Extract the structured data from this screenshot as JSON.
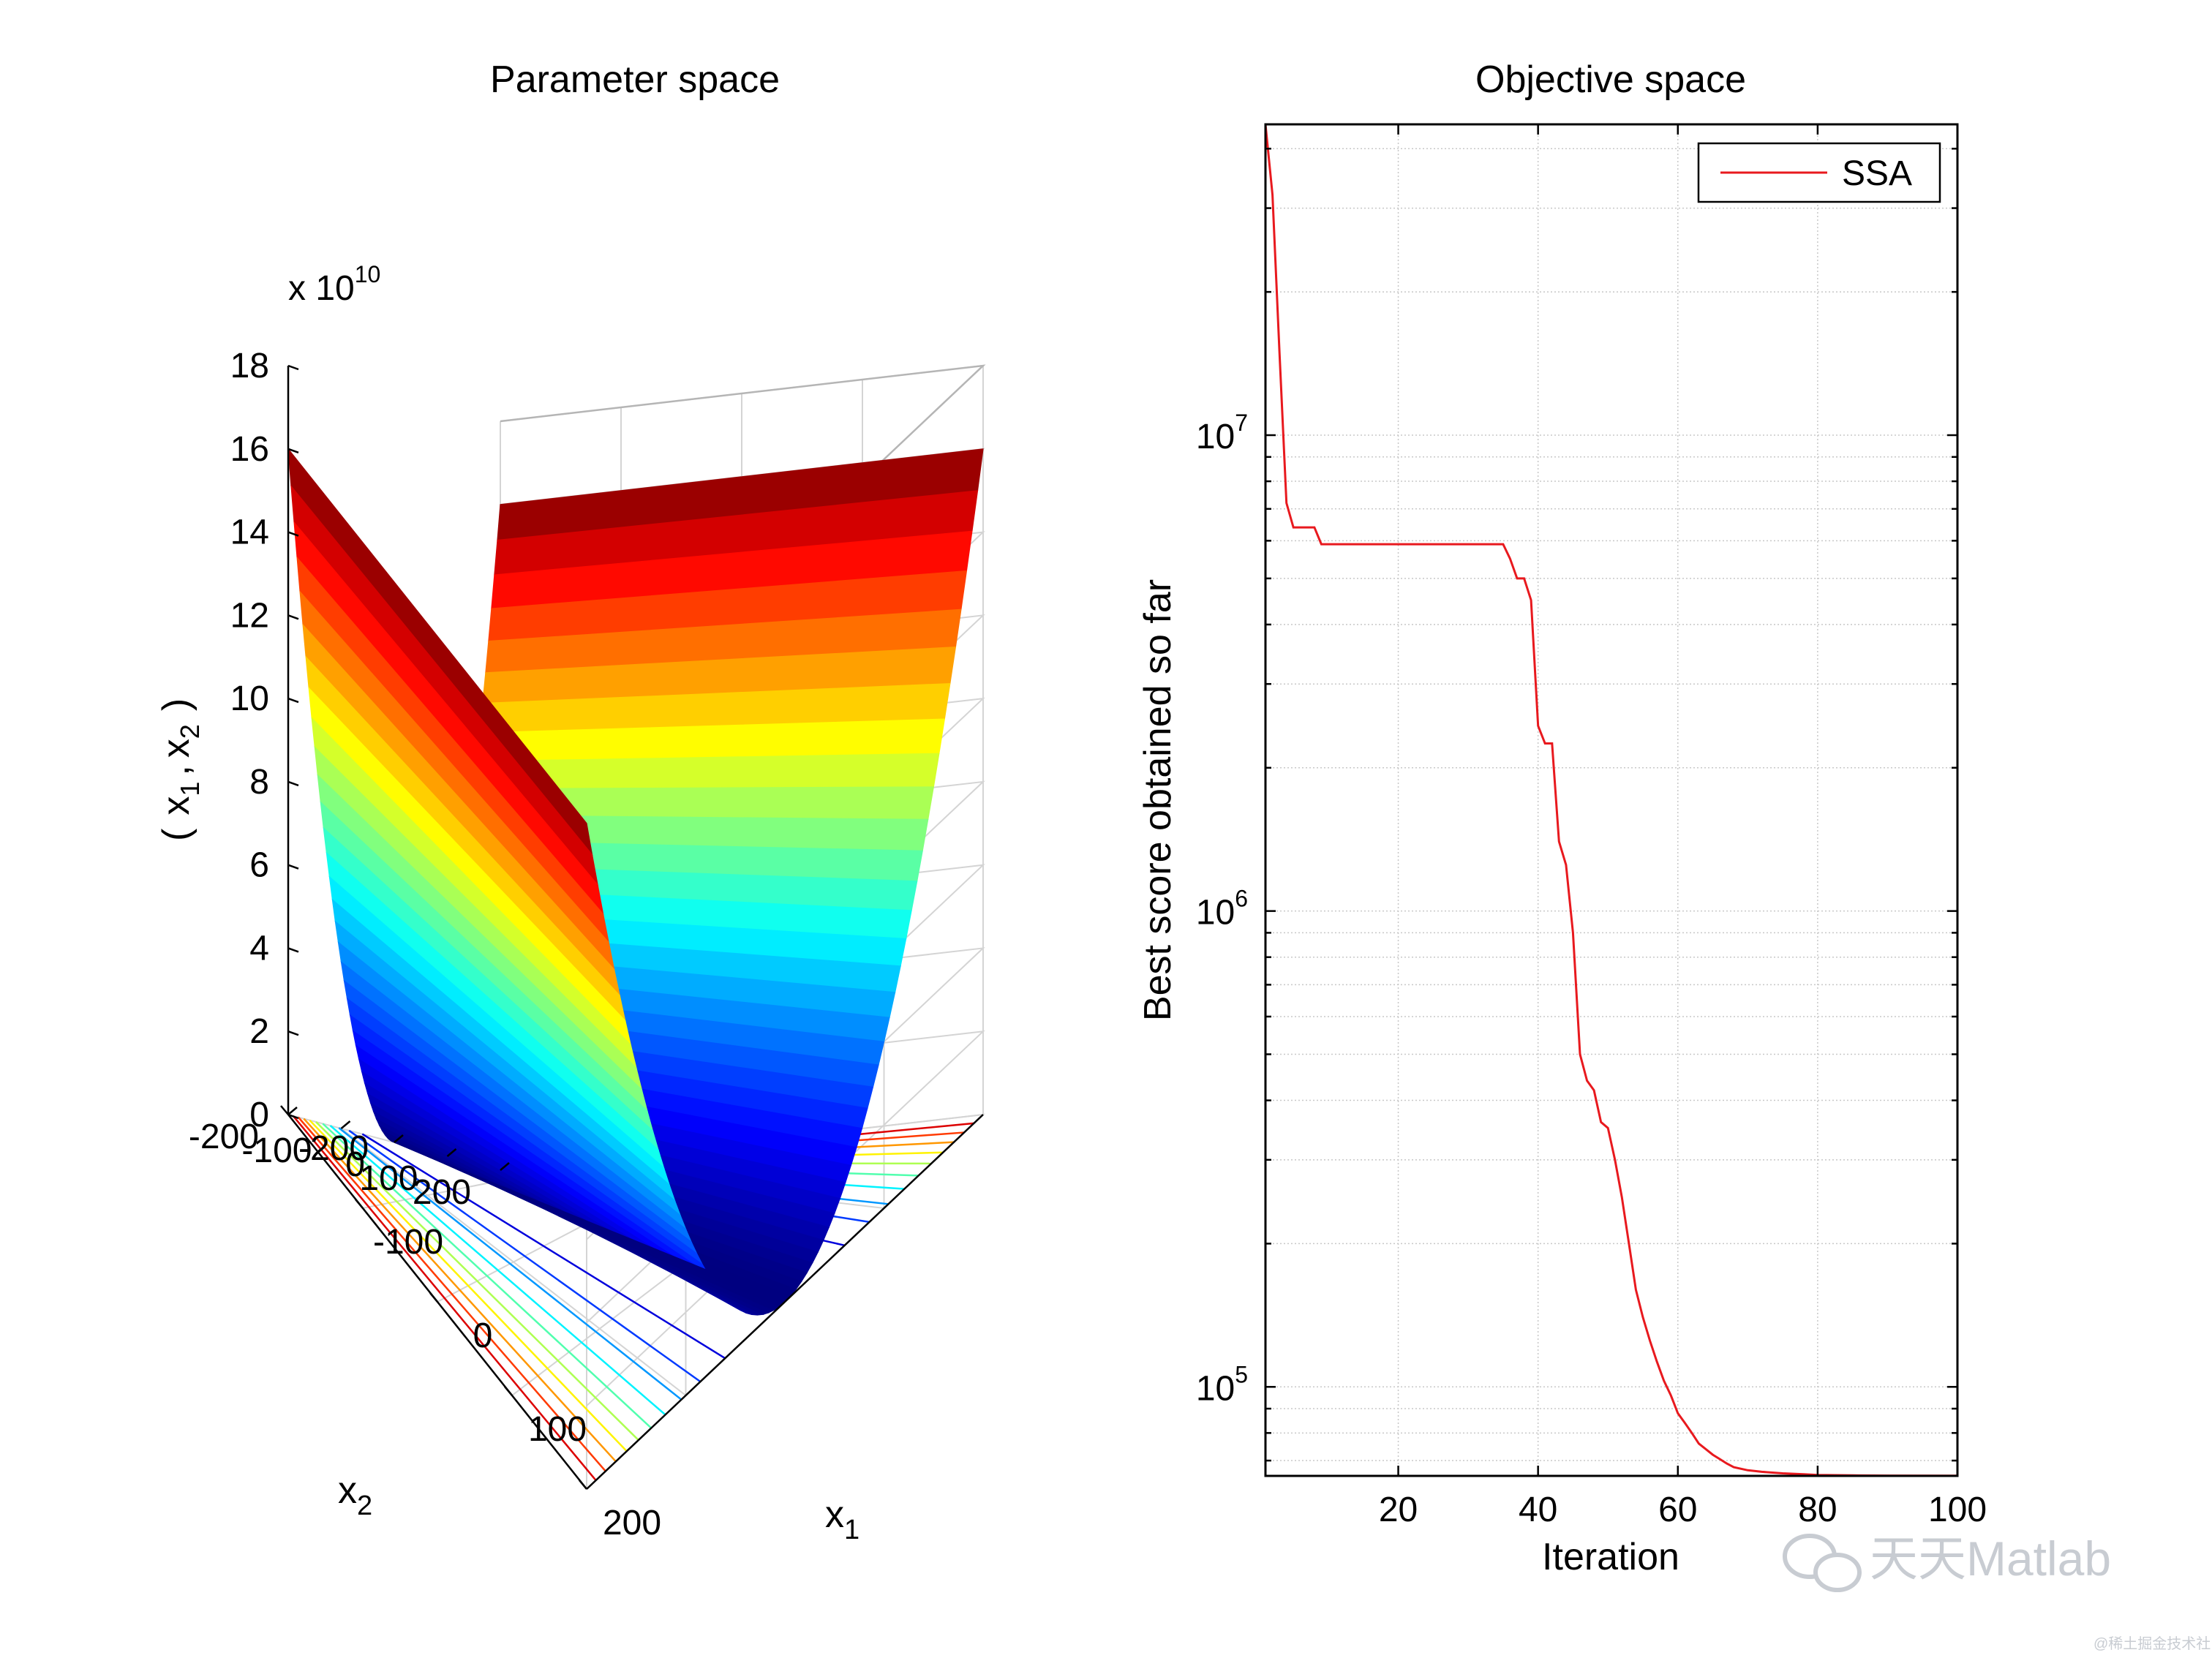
{
  "chart_data": [
    {
      "type": "surface",
      "title": "Parameter space",
      "xlabel": "x",
      "xlabel_sub": "1",
      "ylabel": "x",
      "ylabel_sub": "2",
      "zlabel": "( x , x )",
      "zlabel_parts": [
        "(",
        "x",
        "1",
        ",",
        "x",
        "2",
        ")"
      ],
      "z_exponent_label": "x 10",
      "z_exponent_power": "10",
      "x_range": [
        -200,
        200
      ],
      "y_range": [
        -200,
        200
      ],
      "z_range": [
        0,
        18
      ],
      "x_ticks": [
        "-200",
        "-100",
        "0",
        "100",
        "200"
      ],
      "y_ticks": [
        "-200",
        "-100",
        "0",
        "100",
        "200"
      ],
      "z_ticks": [
        "0",
        "2",
        "4",
        "6",
        "8",
        "10",
        "12",
        "14",
        "16",
        "18"
      ],
      "z_edge_max": 16,
      "colormap": "jet",
      "contour_levels": 10
    },
    {
      "type": "line",
      "title": "Objective space",
      "xlabel": "Iteration",
      "ylabel": "Best score obtained so far",
      "yscale": "log",
      "xlim": [
        1,
        100
      ],
      "ylim": [
        65000,
        45000000
      ],
      "x_ticks": [
        "20",
        "40",
        "60",
        "80",
        "100"
      ],
      "x_tick_values": [
        20,
        40,
        60,
        80,
        100
      ],
      "y_ticks": [
        {
          "base": "10",
          "exp": "5",
          "value": 100000
        },
        {
          "base": "10",
          "exp": "6",
          "value": 1000000
        },
        {
          "base": "10",
          "exp": "7",
          "value": 10000000
        }
      ],
      "grid": true,
      "legend": {
        "position": "top-right",
        "entries": [
          "SSA"
        ]
      },
      "series": [
        {
          "name": "SSA",
          "color": "#e8191e",
          "x": [
            1,
            2,
            3,
            4,
            5,
            6,
            7,
            8,
            9,
            12,
            15,
            20,
            25,
            30,
            34,
            35,
            36,
            37,
            38,
            39,
            40,
            41,
            42,
            43,
            44,
            45,
            46,
            47,
            48,
            49,
            50,
            51,
            52,
            53,
            54,
            55,
            56,
            57,
            58,
            59,
            60,
            61,
            62,
            63,
            64,
            65,
            66,
            67,
            68,
            70,
            72,
            75,
            78,
            80,
            85,
            90,
            100
          ],
          "y": [
            45000000,
            32000000,
            15000000,
            7200000,
            6400000,
            6400000,
            6400000,
            6400000,
            5900000,
            5900000,
            5900000,
            5900000,
            5900000,
            5900000,
            5900000,
            5900000,
            5500000,
            5000000,
            5000000,
            4500000,
            2450000,
            2250000,
            2250000,
            1400000,
            1250000,
            900000,
            500000,
            440000,
            420000,
            360000,
            350000,
            300000,
            250000,
            200000,
            160000,
            140000,
            125000,
            113000,
            103000,
            96000,
            88000,
            84000,
            80000,
            76000,
            74000,
            72000,
            70500,
            69000,
            67800,
            66800,
            66300,
            65800,
            65500,
            65300,
            65150,
            65100,
            65050
          ]
        }
      ]
    }
  ],
  "watermark": {
    "text": "天天Matlab",
    "icon": "wechat-icon",
    "small_text": "@稀土掘金技术社区"
  }
}
